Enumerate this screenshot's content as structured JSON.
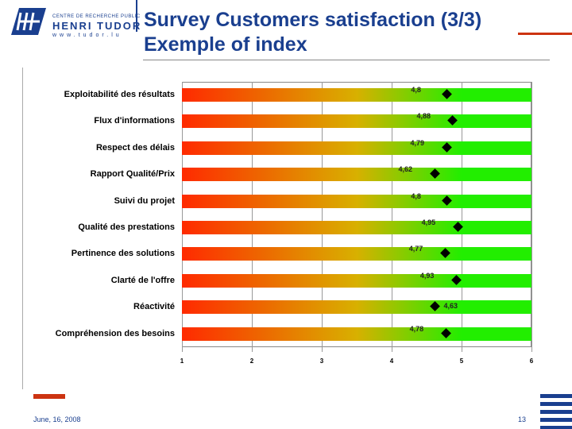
{
  "header": {
    "title_line1": "Survey Customers satisfaction (3/3)",
    "title_line2": "Exemple of index",
    "logo": {
      "line1": "CENTRE DE RECHERCHE PUBLIC",
      "line2": "HENRI TUDOR",
      "line3": "www.tudor.lu"
    }
  },
  "footer": {
    "date": "June, 16, 2008",
    "page": "13"
  },
  "colors": {
    "brand_blue": "#1a3f8f",
    "accent_red": "#cc3311",
    "gradient_start": "#ff2a00",
    "gradient_end": "#22ee00"
  },
  "chart_data": {
    "type": "bar",
    "orientation": "horizontal",
    "categories": [
      "Exploitabilité des résultats",
      "Flux d'informations",
      "Respect des délais",
      "Rapport Qualité/Prix",
      "Suivi du projet",
      "Qualité des prestations",
      "Pertinence des solutions",
      "Clarté de l'offre",
      "Réactivité",
      "Compréhension des besoins"
    ],
    "values": [
      4.8,
      4.88,
      4.79,
      4.62,
      4.8,
      4.95,
      4.77,
      4.93,
      4.63,
      4.78
    ],
    "value_labels": [
      "4,8",
      "4,88",
      "4,79",
      "4,62",
      "4,8",
      "4,95",
      "4,77",
      "4,93",
      "4,63",
      "4,78"
    ],
    "xlim": [
      1,
      6
    ],
    "xticks": [
      "1",
      "2",
      "3",
      "4",
      "5",
      "6"
    ],
    "grid": "vertical",
    "marker": "diamond"
  }
}
